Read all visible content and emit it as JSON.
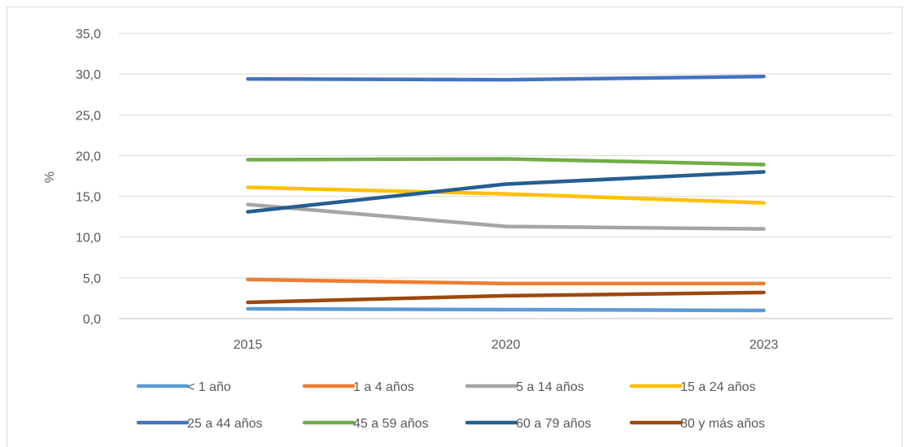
{
  "chart_data": {
    "type": "line",
    "title": "",
    "xlabel": "",
    "ylabel": "%",
    "categories": [
      "2015",
      "2020",
      "2023"
    ],
    "ylim": [
      0,
      35
    ],
    "yticks": [
      "0,0",
      "5,0",
      "10,0",
      "15,0",
      "20,0",
      "25,0",
      "30,0",
      "35,0"
    ],
    "grid": true,
    "legend_position": "bottom",
    "series": [
      {
        "name": "< 1 año",
        "color": "#5b9bd5",
        "values": [
          1.2,
          1.1,
          1.0
        ]
      },
      {
        "name": "1 a 4 años",
        "color": "#ed7d31",
        "values": [
          4.8,
          4.3,
          4.3
        ]
      },
      {
        "name": "5 a 14 años",
        "color": "#a5a5a5",
        "values": [
          14.0,
          11.3,
          11.0
        ]
      },
      {
        "name": "15 a 24 años",
        "color": "#ffc000",
        "values": [
          16.1,
          15.3,
          14.2
        ]
      },
      {
        "name": "25 a 44 años",
        "color": "#4472c4",
        "values": [
          29.4,
          29.3,
          29.7
        ]
      },
      {
        "name": "45 a 59 años",
        "color": "#70ad47",
        "values": [
          19.5,
          19.6,
          18.9
        ]
      },
      {
        "name": "60 a 79 años",
        "color": "#255e91",
        "values": [
          13.1,
          16.5,
          18.0
        ]
      },
      {
        "name": "80 y más años",
        "color": "#9e480e",
        "values": [
          2.0,
          2.8,
          3.2
        ]
      }
    ]
  }
}
